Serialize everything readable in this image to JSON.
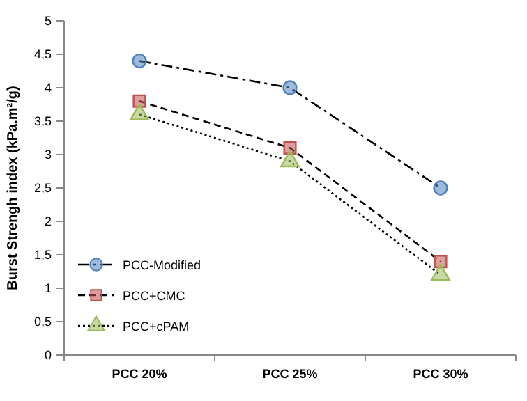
{
  "chart_data": {
    "type": "line",
    "ylabel": "Burst Strengh index  (kPa.m²/g)",
    "categories": [
      "PCC 20%",
      "PCC 25%",
      "PCC 30%"
    ],
    "series": [
      {
        "name": "PCC-Modified",
        "color": "#4f81bd",
        "marker": "circle",
        "line_style": "dashdot",
        "values": [
          4.4,
          4.0,
          2.5
        ]
      },
      {
        "name": "PCC+CMC",
        "color": "#c0504d",
        "marker": "square",
        "line_style": "dashed",
        "values": [
          3.8,
          3.1,
          1.4
        ]
      },
      {
        "name": "PCC+cPAM",
        "color": "#9bbb59",
        "marker": "triangle",
        "line_style": "dotted",
        "values": [
          3.6,
          2.9,
          1.2
        ]
      }
    ],
    "ylim": [
      0,
      5
    ],
    "yticks": [
      0,
      {
        "value": 0.5,
        "label": "0,5"
      },
      1,
      {
        "value": 1.5,
        "label": "1,5"
      },
      2,
      {
        "value": 2.5,
        "label": "2,5"
      },
      3,
      {
        "value": 3.5,
        "label": "3,5"
      },
      4,
      {
        "value": 4.5,
        "label": "4,5"
      },
      5
    ],
    "grid": false,
    "legend": "left"
  }
}
